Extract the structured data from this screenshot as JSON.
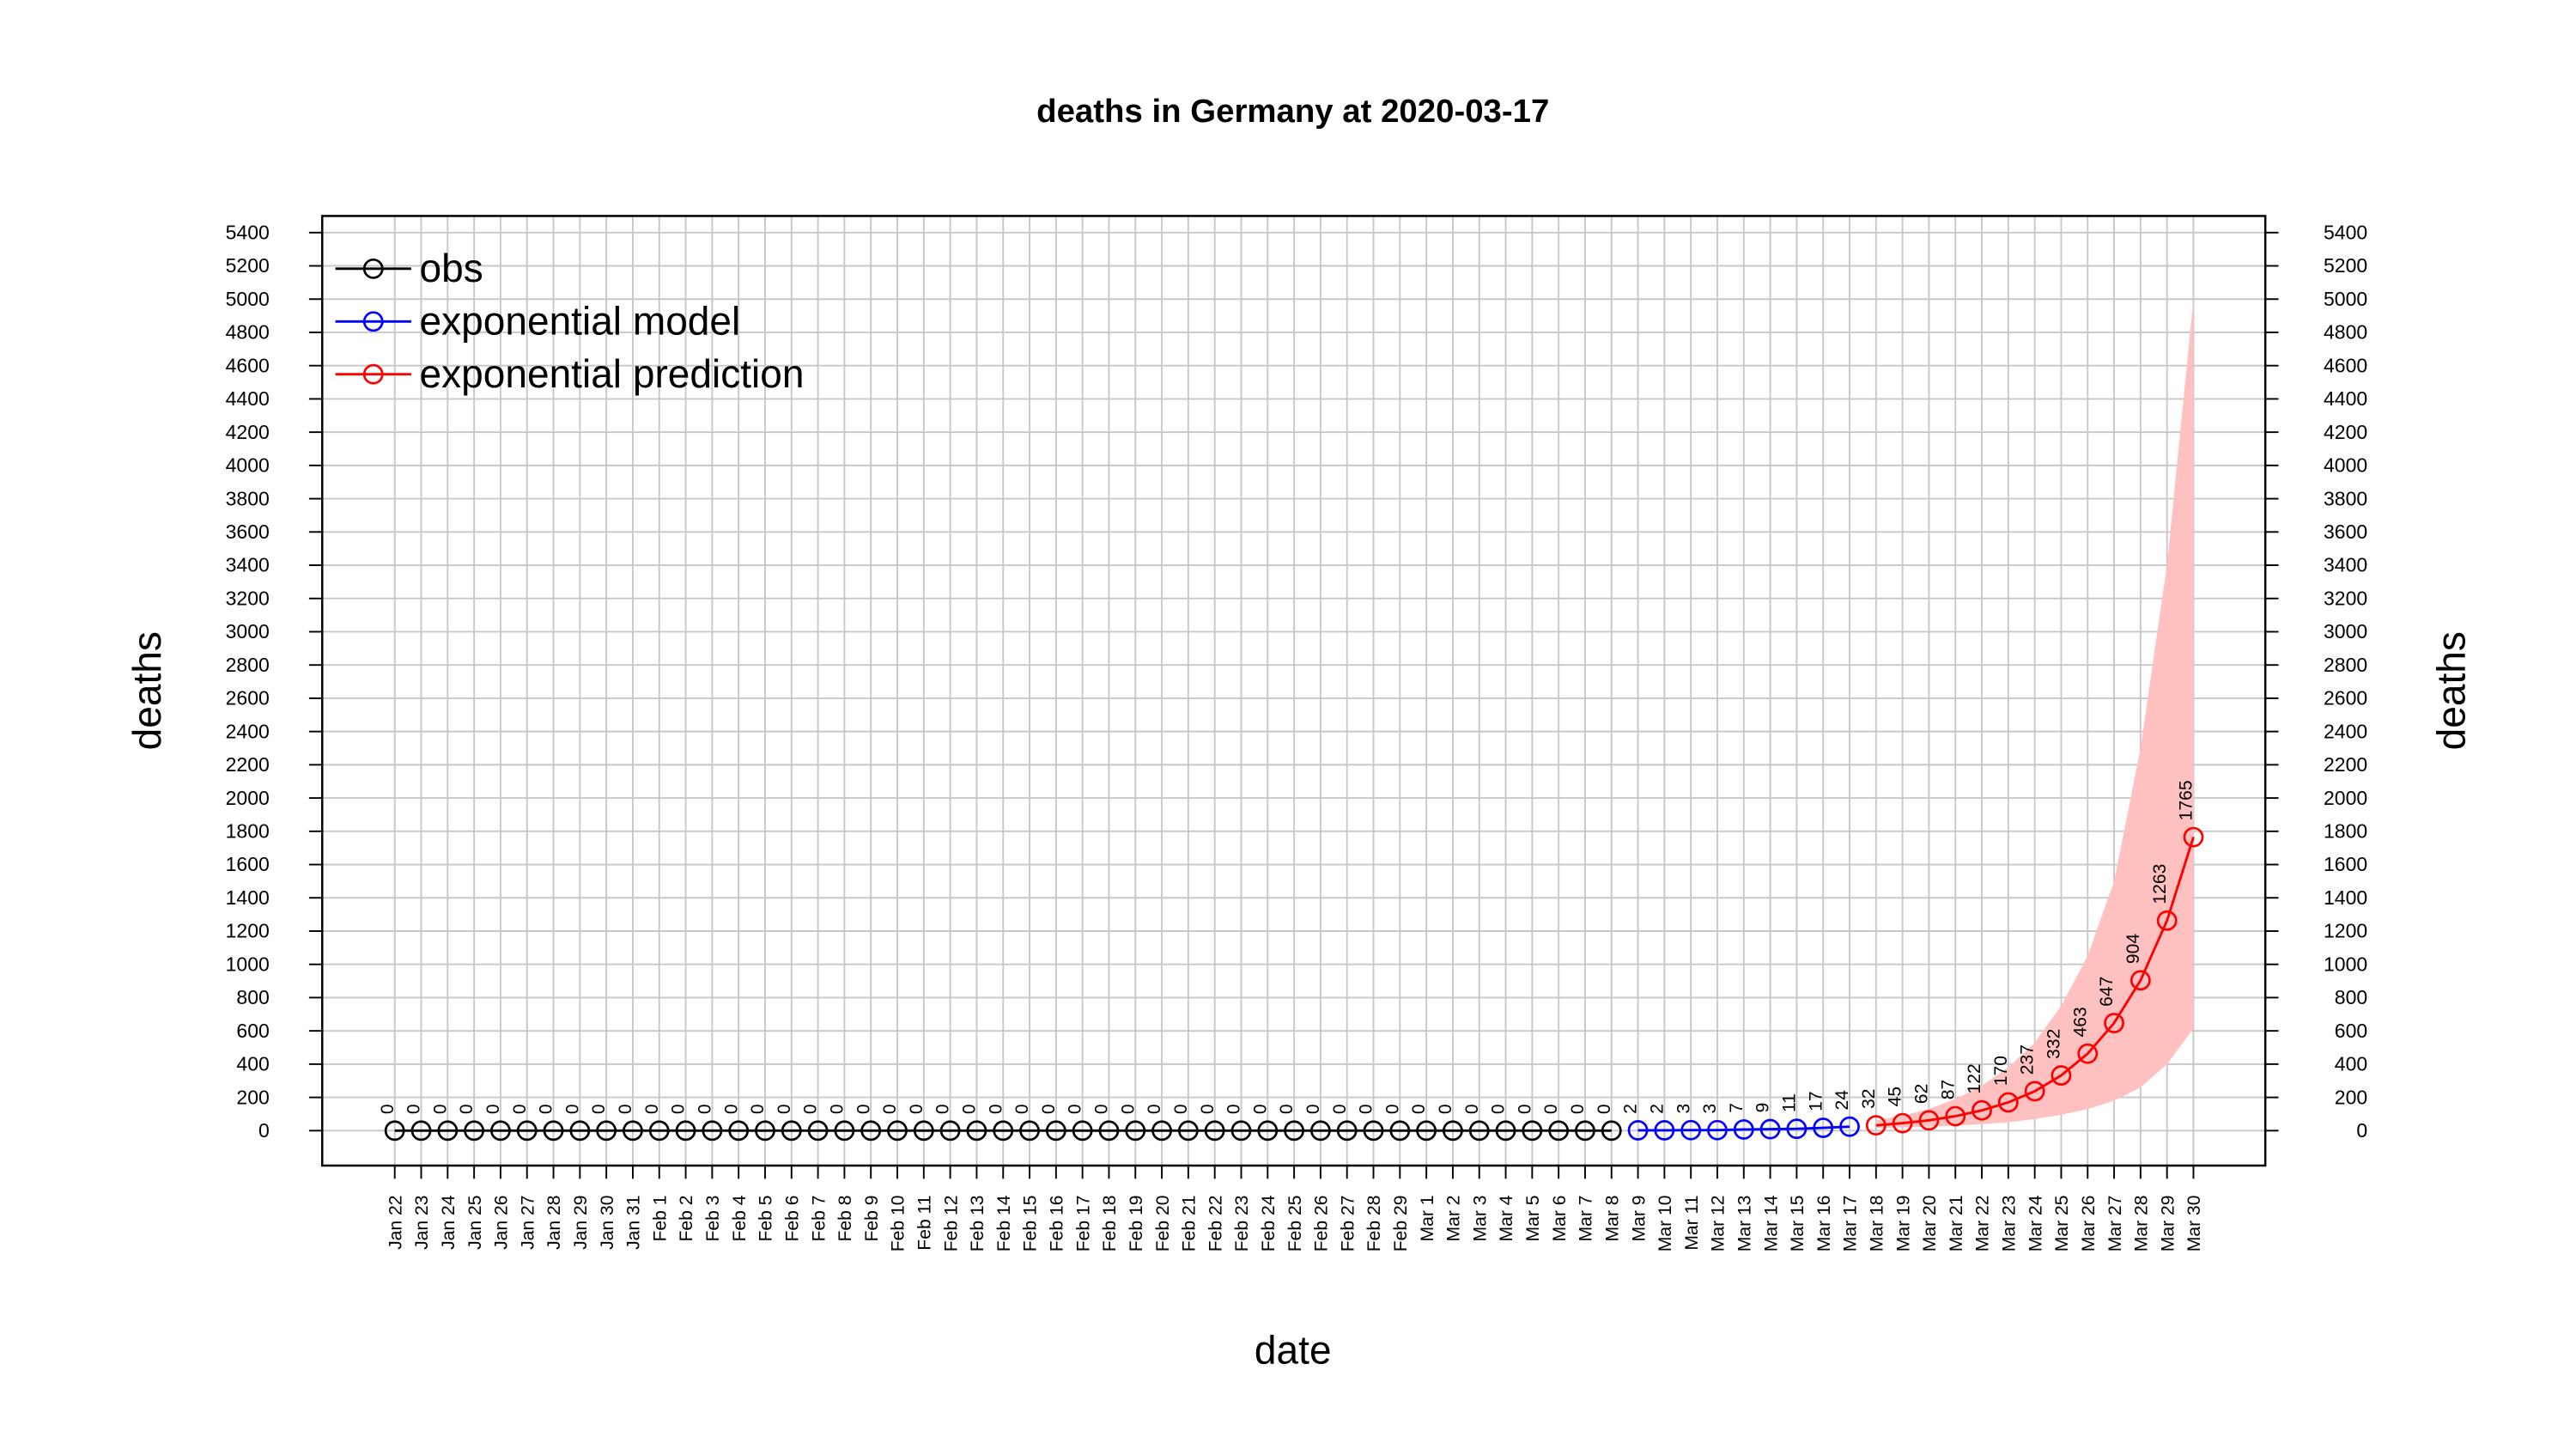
{
  "chart_data": {
    "type": "line",
    "title": "deaths in Germany at 2020-03-17",
    "x_label": "date",
    "y_label": "deaths",
    "categories": [
      "Jan 22",
      "Jan 23",
      "Jan 24",
      "Jan 25",
      "Jan 26",
      "Jan 27",
      "Jan 28",
      "Jan 29",
      "Jan 30",
      "Jan 31",
      "Feb 1",
      "Feb 2",
      "Feb 3",
      "Feb 4",
      "Feb 5",
      "Feb 6",
      "Feb 7",
      "Feb 8",
      "Feb 9",
      "Feb 10",
      "Feb 11",
      "Feb 12",
      "Feb 13",
      "Feb 14",
      "Feb 15",
      "Feb 16",
      "Feb 17",
      "Feb 18",
      "Feb 19",
      "Feb 20",
      "Feb 21",
      "Feb 22",
      "Feb 23",
      "Feb 24",
      "Feb 25",
      "Feb 26",
      "Feb 27",
      "Feb 28",
      "Feb 29",
      "Mar 1",
      "Mar 2",
      "Mar 3",
      "Mar 4",
      "Mar 5",
      "Mar 6",
      "Mar 7",
      "Mar 8",
      "Mar 9",
      "Mar 10",
      "Mar 11",
      "Mar 12",
      "Mar 13",
      "Mar 14",
      "Mar 15",
      "Mar 16",
      "Mar 17",
      "Mar 18",
      "Mar 19",
      "Mar 20",
      "Mar 21",
      "Mar 22",
      "Mar 23",
      "Mar 24",
      "Mar 25",
      "Mar 26",
      "Mar 27",
      "Mar 28",
      "Mar 29",
      "Mar 30"
    ],
    "series": [
      {
        "name": "obs",
        "color": "#000000",
        "values": [
          0,
          0,
          0,
          0,
          0,
          0,
          0,
          0,
          0,
          0,
          0,
          0,
          0,
          0,
          0,
          0,
          0,
          0,
          0,
          0,
          0,
          0,
          0,
          0,
          0,
          0,
          0,
          0,
          0,
          0,
          0,
          0,
          0,
          0,
          0,
          0,
          0,
          0,
          0,
          0,
          0,
          0,
          0,
          0,
          0,
          0,
          0,
          null,
          null,
          null,
          null,
          null,
          null,
          null,
          null,
          null,
          null,
          null,
          null,
          null,
          null,
          null,
          null,
          null,
          null,
          null,
          null,
          null,
          null
        ]
      },
      {
        "name": "exponential model",
        "color": "#0000ff",
        "values": [
          null,
          null,
          null,
          null,
          null,
          null,
          null,
          null,
          null,
          null,
          null,
          null,
          null,
          null,
          null,
          null,
          null,
          null,
          null,
          null,
          null,
          null,
          null,
          null,
          null,
          null,
          null,
          null,
          null,
          null,
          null,
          null,
          null,
          null,
          null,
          null,
          null,
          null,
          null,
          null,
          null,
          null,
          null,
          null,
          null,
          null,
          null,
          2,
          2,
          3,
          3,
          7,
          9,
          11,
          17,
          24,
          null,
          null,
          null,
          null,
          null,
          null,
          null,
          null,
          null,
          null,
          null,
          null,
          null
        ]
      },
      {
        "name": "exponential prediction",
        "color": "#ff0000",
        "values": [
          null,
          null,
          null,
          null,
          null,
          null,
          null,
          null,
          null,
          null,
          null,
          null,
          null,
          null,
          null,
          null,
          null,
          null,
          null,
          null,
          null,
          null,
          null,
          null,
          null,
          null,
          null,
          null,
          null,
          null,
          null,
          null,
          null,
          null,
          null,
          null,
          null,
          null,
          null,
          null,
          null,
          null,
          null,
          null,
          null,
          null,
          null,
          null,
          null,
          null,
          null,
          null,
          null,
          null,
          null,
          null,
          32,
          45,
          62,
          87,
          122,
          170,
          237,
          332,
          463,
          647,
          904,
          1263,
          1765
        ]
      }
    ],
    "band": {
      "color": "#ffc0c0",
      "lower": [
        null,
        null,
        null,
        null,
        null,
        null,
        null,
        null,
        null,
        null,
        null,
        null,
        null,
        null,
        null,
        null,
        null,
        null,
        null,
        null,
        null,
        null,
        null,
        null,
        null,
        null,
        null,
        null,
        null,
        null,
        null,
        null,
        null,
        null,
        null,
        null,
        null,
        null,
        null,
        null,
        null,
        null,
        null,
        null,
        null,
        null,
        null,
        null,
        null,
        null,
        null,
        null,
        null,
        null,
        null,
        null,
        15,
        20,
        25,
        30,
        40,
        50,
        70,
        95,
        130,
        180,
        260,
        400,
        615
      ],
      "upper": [
        null,
        null,
        null,
        null,
        null,
        null,
        null,
        null,
        null,
        null,
        null,
        null,
        null,
        null,
        null,
        null,
        null,
        null,
        null,
        null,
        null,
        null,
        null,
        null,
        null,
        null,
        null,
        null,
        null,
        null,
        null,
        null,
        null,
        null,
        null,
        null,
        null,
        null,
        null,
        null,
        null,
        null,
        null,
        null,
        null,
        null,
        null,
        null,
        null,
        null,
        null,
        null,
        null,
        null,
        null,
        null,
        60,
        90,
        130,
        190,
        270,
        380,
        530,
        750,
        1050,
        1500,
        2300,
        3400,
        5000
      ]
    },
    "ylim": [
      -210,
      5500
    ],
    "yticks": [
      0,
      200,
      400,
      600,
      800,
      1000,
      1200,
      1400,
      1600,
      1800,
      2000,
      2200,
      2400,
      2600,
      2800,
      3000,
      3200,
      3400,
      3600,
      3800,
      4000,
      4200,
      4400,
      4600,
      4800,
      5000,
      5200,
      5400
    ],
    "grid": true,
    "legend": "top-left"
  }
}
